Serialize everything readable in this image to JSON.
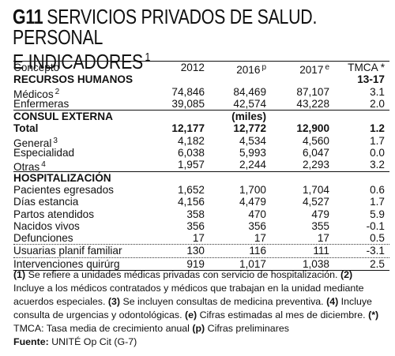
{
  "title": {
    "code": "G11",
    "line1": "SERVICIOS PRIVADOS DE SALUD. PERSONAL",
    "line2": "E INDICADORES",
    "note": "1"
  },
  "header": {
    "concepto": "Concepto",
    "y2012": "2012",
    "y2016": "2016",
    "y2016_sup": "p",
    "y2017": "2017",
    "y2017_sup": "e",
    "tmca": "TMCA *",
    "tmca_range": "13-17"
  },
  "sections": {
    "rrhh": "RECURSOS HUMANOS",
    "consulta": "CONSUL  EXTERNA",
    "consulta_unit": "(miles)",
    "hosp": "HOSPITALIZACIÓN"
  },
  "rows": {
    "medicos": {
      "label": "Médicos",
      "sup": "2",
      "v2012": "74,846",
      "v2016": "84,469",
      "v2017": "87,107",
      "tmca": "3.1"
    },
    "enfermeras": {
      "label": "Enfermeras",
      "v2012": "39,085",
      "v2016": "42,574",
      "v2017": "43,228",
      "tmca": "2.0"
    },
    "total": {
      "label": "Total",
      "v2012": "12,177",
      "v2016": "12,772",
      "v2017": "12,900",
      "tmca": "1.2"
    },
    "general": {
      "label": "General",
      "sup": "3",
      "v2012": "4,182",
      "v2016": "4,534",
      "v2017": "4,560",
      "tmca": "1.7"
    },
    "especialidad": {
      "label": "Especialidad",
      "v2012": "6,038",
      "v2016": "5,993",
      "v2017": "6,047",
      "tmca": "0.0"
    },
    "otras": {
      "label": "Otras",
      "sup": "4",
      "v2012": "1,957",
      "v2016": "2,244",
      "v2017": "2,293",
      "tmca": "3.2"
    },
    "pacientes": {
      "label": "Pacientes egresados",
      "v2012": "1,652",
      "v2016": "1,700",
      "v2017": "1,704",
      "tmca": "0.6"
    },
    "dias": {
      "label": "Días estancia",
      "v2012": "4,156",
      "v2016": "4,479",
      "v2017": "4,527",
      "tmca": "1.7"
    },
    "partos": {
      "label": "Partos atendidos",
      "v2012": "358",
      "v2016": "470",
      "v2017": "479",
      "tmca": "5.9"
    },
    "nacidos": {
      "label": "Nacidos vivos",
      "v2012": "356",
      "v2016": "356",
      "v2017": "355",
      "tmca": "-0.1"
    },
    "defunciones": {
      "label": "Defunciones",
      "v2012": "17",
      "v2016": "17",
      "v2017": "17",
      "tmca": "0.5"
    },
    "usuarias": {
      "label": "Usuarias planif familiar",
      "v2012": "130",
      "v2016": "116",
      "v2017": "111",
      "tmca": "-3.1"
    },
    "intervenciones": {
      "label": "Intervenciones quirúrg",
      "v2012": "919",
      "v2016": "1,017",
      "v2017": "1,038",
      "tmca": "2.5"
    }
  },
  "notes": {
    "n1_key": "(1)",
    "n1": " Se refiere a unidades médicas privadas con servicio de hospitalización.",
    "n2_key": "(2)",
    "n2": " Incluye a los médicos contratados y médicos que trabajan en la unidad mediante acuerdos especiales.",
    "n3_key": "(3)",
    "n3": " Se incluyen consultas de medicina preventiva.",
    "n4_key": "(4)",
    "n4": " Incluye consulta de urgencias y odontológicas.",
    "ne_key": "(e)",
    "ne": " Cifras estimadas al mes de diciembre.",
    "nstar_key": "(*)",
    "nstar": " TMCA: Tasa media de crecimiento anual",
    "np_key": "(p)",
    "np": " Cifras preliminares",
    "fuente_key": "Fuente:",
    "fuente": " UNITÉ Op Cit (G-7)"
  }
}
